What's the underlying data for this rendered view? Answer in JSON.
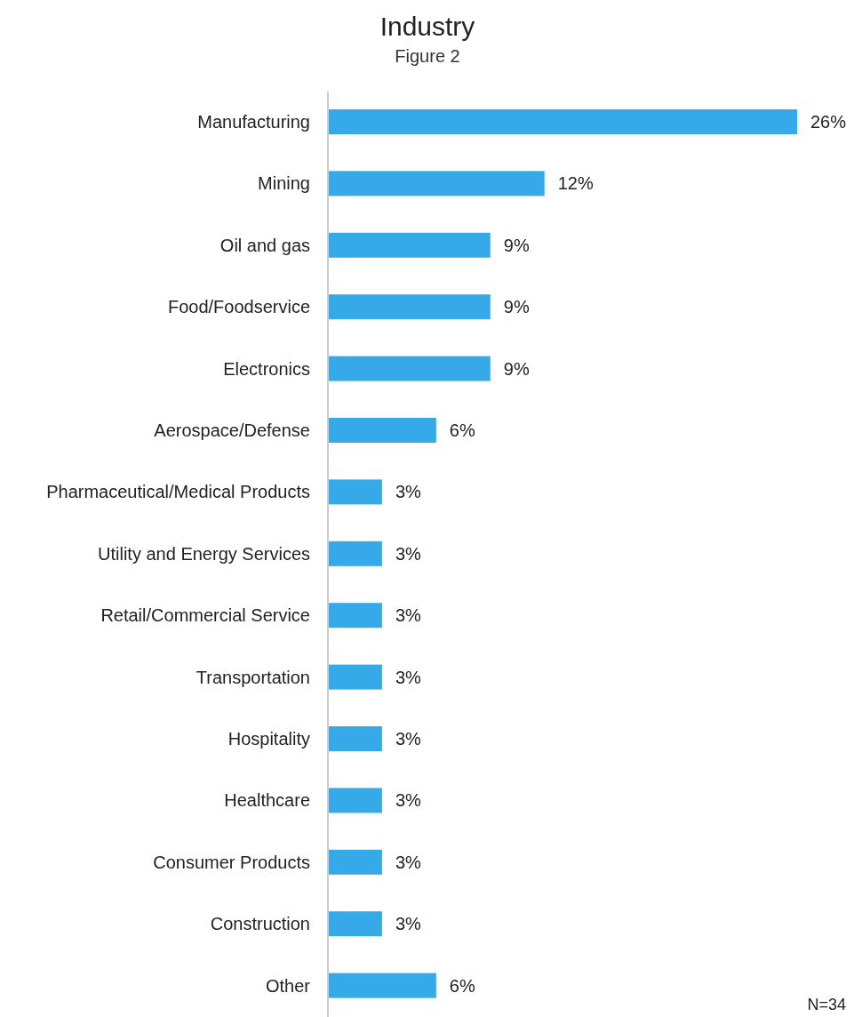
{
  "chart_data": {
    "type": "bar",
    "orientation": "horizontal",
    "title": "Industry",
    "subtitle": "Figure 2",
    "categories": [
      "Manufacturing",
      "Mining",
      "Oil and gas",
      "Food/Foodservice",
      "Electronics",
      "Aerospace/Defense",
      "Pharmaceutical/Medical Products",
      "Utility and Energy Services",
      "Retail/Commercial Service",
      "Transportation",
      "Hospitality",
      "Healthcare",
      "Consumer Products",
      "Construction",
      "Other"
    ],
    "values": [
      26,
      12,
      9,
      9,
      9,
      6,
      3,
      3,
      3,
      3,
      3,
      3,
      3,
      3,
      6
    ],
    "value_labels": [
      "26%",
      "12%",
      "9%",
      "9%",
      "9%",
      "6%",
      "3%",
      "3%",
      "3%",
      "3%",
      "3%",
      "3%",
      "3%",
      "3%",
      "6%"
    ],
    "color": "#36a9e8",
    "annotations": [
      "N=34"
    ]
  }
}
